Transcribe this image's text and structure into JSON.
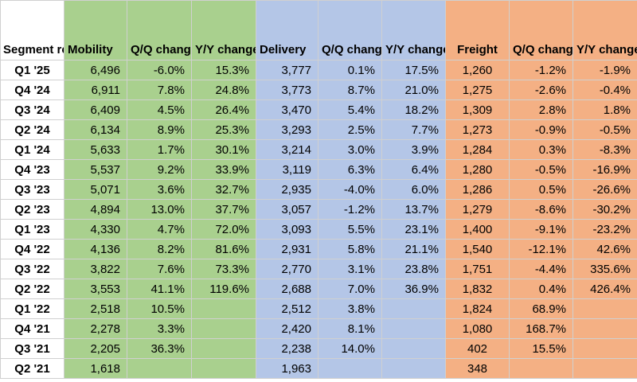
{
  "header": {
    "row_label": "Segment revenue (in $M)",
    "segments": [
      {
        "name": "Mobility",
        "qq": "Q/Q change",
        "yy": "Y/Y change"
      },
      {
        "name": "Delivery",
        "qq": "Q/Q change",
        "yy": "Y/Y change"
      },
      {
        "name": "Freight",
        "qq": "Q/Q change",
        "yy": "Y/Y change"
      }
    ]
  },
  "colors": {
    "mobility": "#a9d08e",
    "delivery": "#b4c6e7",
    "freight": "#f4b084"
  },
  "rows": [
    {
      "period": "Q1 '25",
      "cells": [
        "6,496",
        "-6.0%",
        "15.3%",
        "3,777",
        "0.1%",
        "17.5%",
        "1,260",
        "-1.2%",
        "-1.9%"
      ]
    },
    {
      "period": "Q4 '24",
      "cells": [
        "6,911",
        "7.8%",
        "24.8%",
        "3,773",
        "8.7%",
        "21.0%",
        "1,275",
        "-2.6%",
        "-0.4%"
      ]
    },
    {
      "period": "Q3 '24",
      "cells": [
        "6,409",
        "4.5%",
        "26.4%",
        "3,470",
        "5.4%",
        "18.2%",
        "1,309",
        "2.8%",
        "1.8%"
      ]
    },
    {
      "period": "Q2 '24",
      "cells": [
        "6,134",
        "8.9%",
        "25.3%",
        "3,293",
        "2.5%",
        "7.7%",
        "1,273",
        "-0.9%",
        "-0.5%"
      ]
    },
    {
      "period": "Q1 '24",
      "cells": [
        "5,633",
        "1.7%",
        "30.1%",
        "3,214",
        "3.0%",
        "3.9%",
        "1,284",
        "0.3%",
        "-8.3%"
      ]
    },
    {
      "period": "Q4 '23",
      "cells": [
        "5,537",
        "9.2%",
        "33.9%",
        "3,119",
        "6.3%",
        "6.4%",
        "1,280",
        "-0.5%",
        "-16.9%"
      ]
    },
    {
      "period": "Q3 '23",
      "cells": [
        "5,071",
        "3.6%",
        "32.7%",
        "2,935",
        "-4.0%",
        "6.0%",
        "1,286",
        "0.5%",
        "-26.6%"
      ]
    },
    {
      "period": "Q2 '23",
      "cells": [
        "4,894",
        "13.0%",
        "37.7%",
        "3,057",
        "-1.2%",
        "13.7%",
        "1,279",
        "-8.6%",
        "-30.2%"
      ]
    },
    {
      "period": "Q1 '23",
      "cells": [
        "4,330",
        "4.7%",
        "72.0%",
        "3,093",
        "5.5%",
        "23.1%",
        "1,400",
        "-9.1%",
        "-23.2%"
      ]
    },
    {
      "period": "Q4 '22",
      "cells": [
        "4,136",
        "8.2%",
        "81.6%",
        "2,931",
        "5.8%",
        "21.1%",
        "1,540",
        "-12.1%",
        "42.6%"
      ]
    },
    {
      "period": "Q3 '22",
      "cells": [
        "3,822",
        "7.6%",
        "73.3%",
        "2,770",
        "3.1%",
        "23.8%",
        "1,751",
        "-4.4%",
        "335.6%"
      ]
    },
    {
      "period": "Q2 '22",
      "cells": [
        "3,553",
        "41.1%",
        "119.6%",
        "2,688",
        "7.0%",
        "36.9%",
        "1,832",
        "0.4%",
        "426.4%"
      ]
    },
    {
      "period": "Q1 '22",
      "cells": [
        "2,518",
        "10.5%",
        "",
        "2,512",
        "3.8%",
        "",
        "1,824",
        "68.9%",
        ""
      ]
    },
    {
      "period": "Q4 '21",
      "cells": [
        "2,278",
        "3.3%",
        "",
        "2,420",
        "8.1%",
        "",
        "1,080",
        "168.7%",
        ""
      ]
    },
    {
      "period": "Q3 '21",
      "cells": [
        "2,205",
        "36.3%",
        "",
        "2,238",
        "14.0%",
        "",
        "402",
        "15.5%",
        ""
      ]
    },
    {
      "period": "Q2 '21",
      "cells": [
        "1,618",
        "",
        "",
        "1,963",
        "",
        "",
        "348",
        "",
        ""
      ]
    }
  ]
}
